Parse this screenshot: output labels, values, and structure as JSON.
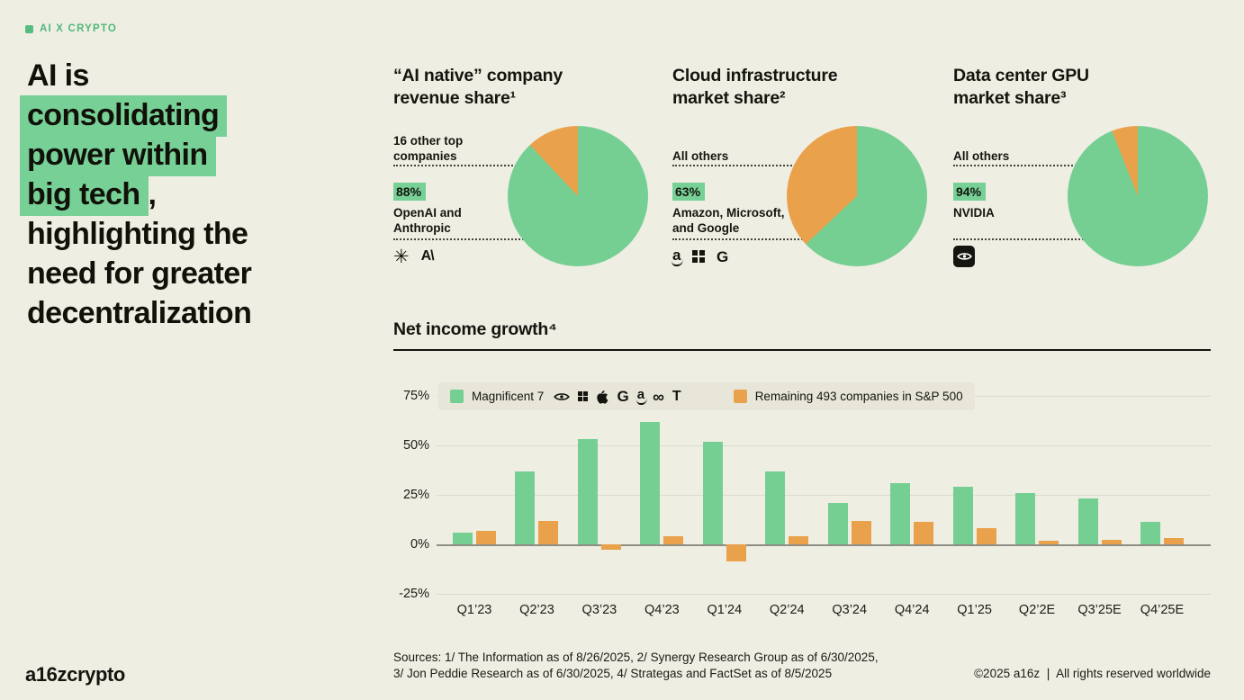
{
  "brand": {
    "eyebrow": "AI X CRYPTO"
  },
  "headline": {
    "line1": "AI is",
    "line2": "consolidating",
    "line3": "power within",
    "line4_highlight": "big tech",
    "line4_suffix": ",",
    "line5": "highlighting the",
    "line6": "need for greater",
    "line7": "decentralization"
  },
  "pies": [
    {
      "title_line1": "“AI native” company",
      "title_line2": "revenue share¹",
      "other_label": "16 other top\ncompanies",
      "pct": "88%",
      "main_label": "OpenAI and\nAnthropic"
    },
    {
      "title_line1": "Cloud infrastructure",
      "title_line2": "market share²",
      "other_label": "All others",
      "pct": "63%",
      "main_label": "Amazon, Microsoft,\nand Google"
    },
    {
      "title_line1": "Data center GPU",
      "title_line2": "market share³",
      "other_label": "All others",
      "pct": "94%",
      "main_label": "NVIDIA"
    }
  ],
  "bar_section": {
    "title": "Net income growth⁴",
    "legend": {
      "series1": "Magnificent 7",
      "series2": "Remaining 493 companies in S&P 500"
    }
  },
  "glyphs": {
    "openai": "✳",
    "anthropic": "A\\",
    "amazon": "a",
    "google": "G",
    "meta": "∞",
    "tesla": "T"
  },
  "sources": {
    "line1": "Sources: 1/ The Information as of 8/26/2025, 2/ Synergy Research Group as of 6/30/2025,",
    "line2": "3/ Jon Peddie Research as of 6/30/2025, 4/ Strategas and FactSet as of 8/5/2025"
  },
  "footer": {
    "wordmark": "a16zcrypto",
    "copyright": "©2025 a16z ❘ All rights reserved worldwide"
  },
  "colors": {
    "background": "#EFEEE3",
    "green": "#75CF93",
    "orange": "#E9A24B"
  },
  "chart_data": [
    {
      "type": "pie",
      "title": "“AI native” company revenue share",
      "slices": [
        {
          "label": "OpenAI and Anthropic",
          "value": 88,
          "color": "#75CF93"
        },
        {
          "label": "16 other top companies",
          "value": 12,
          "color": "#E9A24B"
        }
      ]
    },
    {
      "type": "pie",
      "title": "Cloud infrastructure market share",
      "slices": [
        {
          "label": "Amazon, Microsoft, and Google",
          "value": 63,
          "color": "#75CF93"
        },
        {
          "label": "All others",
          "value": 37,
          "color": "#E9A24B"
        }
      ]
    },
    {
      "type": "pie",
      "title": "Data center GPU market share",
      "slices": [
        {
          "label": "NVIDIA",
          "value": 94,
          "color": "#75CF93"
        },
        {
          "label": "All others",
          "value": 6,
          "color": "#E9A24B"
        }
      ]
    },
    {
      "type": "bar",
      "title": "Net income growth",
      "categories": [
        "Q1’23",
        "Q2’23",
        "Q3’23",
        "Q4’23",
        "Q1’24",
        "Q2’24",
        "Q3’24",
        "Q4’24",
        "Q1’25",
        "Q2’2E",
        "Q3’25E",
        "Q4’25E"
      ],
      "series": [
        {
          "name": "Magnificent 7",
          "color": "#75CF93",
          "values": [
            6,
            37,
            53,
            62,
            52,
            37,
            21,
            31,
            29,
            26,
            23,
            11.5
          ]
        },
        {
          "name": "Remaining 493 companies in S&P 500",
          "color": "#E9A24B",
          "values": [
            7,
            12,
            -2.5,
            4,
            -8.5,
            4,
            12,
            11.5,
            8,
            2,
            2.5,
            3
          ]
        }
      ],
      "xlabel": "",
      "ylabel": "",
      "ylim": [
        -25,
        75
      ],
      "yticks": [
        {
          "label": "75%",
          "value": 75
        },
        {
          "label": "50%",
          "value": 50
        },
        {
          "label": "25%",
          "value": 25
        },
        {
          "label": "0%",
          "value": 0
        },
        {
          "label": "-25%",
          "value": -25
        }
      ],
      "grid": true,
      "legend_position": "top"
    }
  ]
}
